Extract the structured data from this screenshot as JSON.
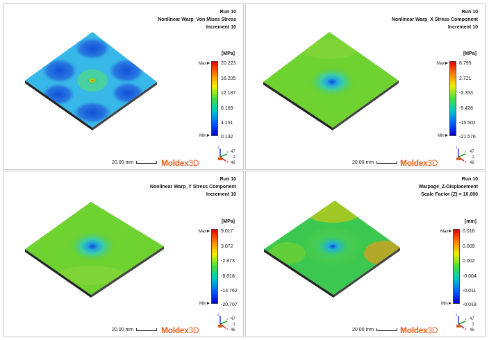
{
  "panels": [
    {
      "run": "Run 10",
      "result": "Nonlinear Warp_Von Mises Stress",
      "extra": "Increment 10",
      "unit": "[MPa]",
      "ticks": [
        "20.223",
        "16.205",
        "12.187",
        "8.169",
        "4.151",
        "0.132"
      ],
      "max_label": "Max",
      "min_label": "Min",
      "scale": "20.00 mm",
      "ids": [
        "47",
        "1",
        "46"
      ]
    },
    {
      "run": "Run 10",
      "result": "Nonlinear Warp_X Stress Component",
      "extra": "Increment 10",
      "unit": "[MPa]",
      "ticks": [
        "8.795",
        "2.721",
        "-3.353",
        "-9.428",
        "-15.502",
        "-21.576"
      ],
      "max_label": "Max",
      "min_label": "Min",
      "scale": "20.00 mm",
      "ids": [
        "47",
        "1",
        "46"
      ]
    },
    {
      "run": "Run 10",
      "result": "Nonlinear Warp_Y Stress Component",
      "extra": "Increment 10",
      "unit": "[MPa]",
      "ticks": [
        "9.017",
        "3.072",
        "-2.873",
        "-8.818",
        "-14.762",
        "-20.707"
      ],
      "max_label": "Max",
      "min_label": "Min",
      "scale": "20.00 mm",
      "ids": [
        "47",
        "1",
        "46"
      ]
    },
    {
      "run": "Run 10",
      "result": "Warpage_Z-Displacement",
      "extra": "Scale Factor (Z) = 10.000",
      "unit": "[mm]",
      "ticks": [
        "0.016",
        "0.009",
        "0.002",
        "-0.004",
        "-0.011",
        "-0.018"
      ],
      "max_label": "Max",
      "min_label": "Min",
      "scale": "20.00 mm",
      "ids": [
        "47",
        "1",
        "46"
      ]
    }
  ],
  "logo": {
    "text_a": "Moldex",
    "text_b": "3D"
  },
  "axes": {
    "x": "x",
    "y": "y",
    "z": "z"
  },
  "colors": {
    "accent": "#e65c1c",
    "bar_top": "#e00000",
    "bar_bottom": "#0000cc"
  }
}
